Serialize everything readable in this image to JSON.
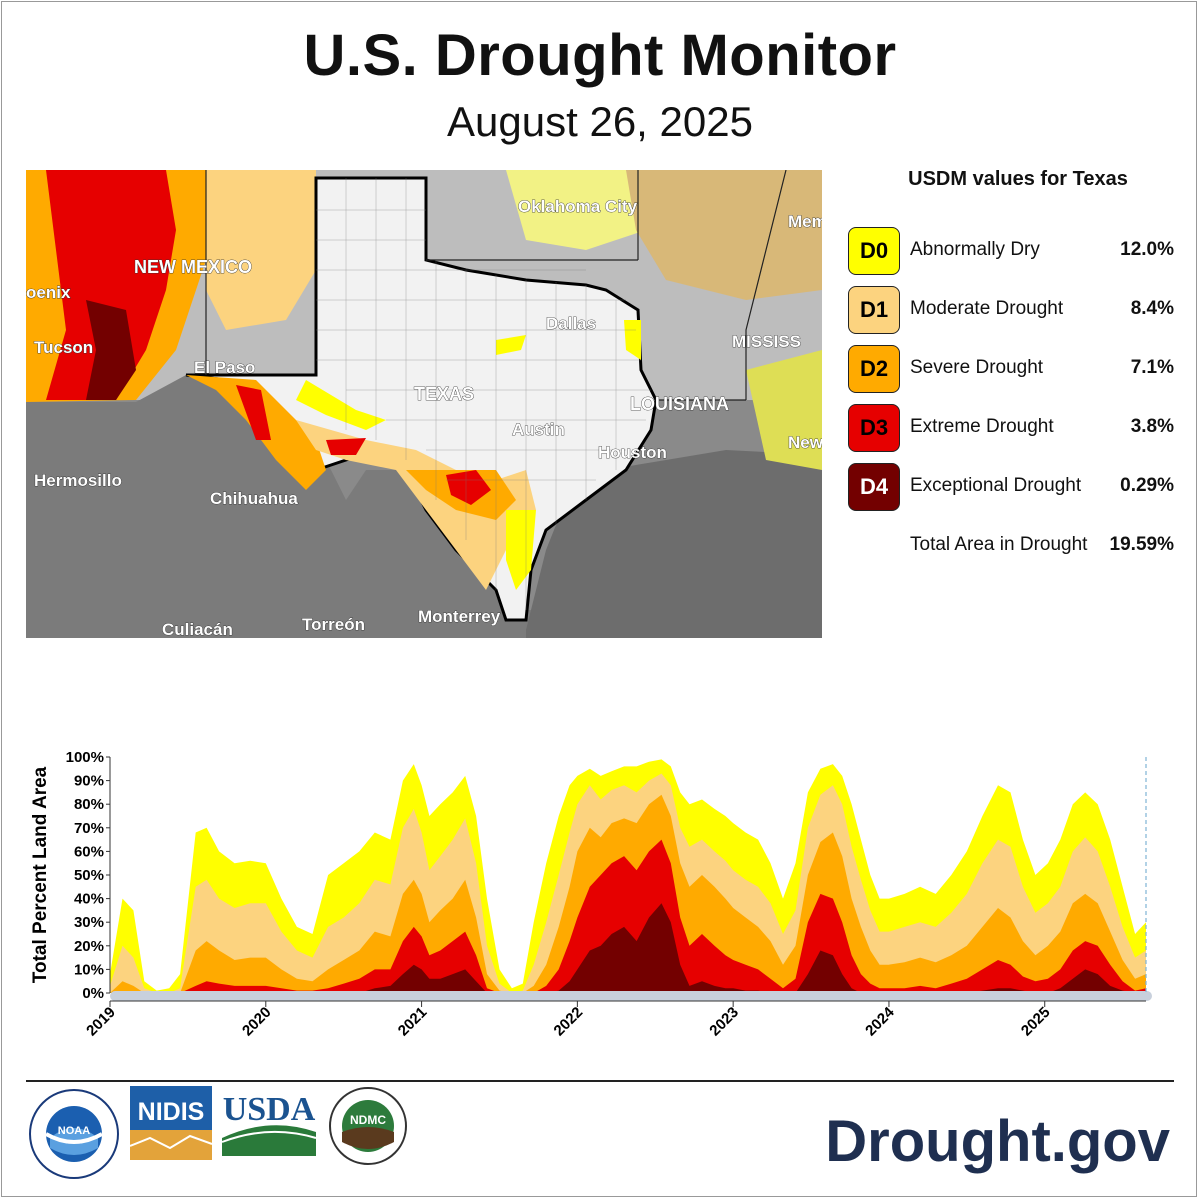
{
  "title": "U.S. Drought Monitor",
  "subtitle": "August 26, 2025",
  "map": {
    "labels": [
      "NEW MEXICO",
      "Oklahoma City",
      "Mem",
      "Dallas",
      "MISSISS",
      "TEXAS",
      "LOUISIANA",
      "Austin",
      "Houston",
      "New",
      "oenix",
      "Tucson",
      "El Paso",
      "Hermosillo",
      "Chihuahua",
      "Culiacán",
      "Torreón",
      "Monterrey"
    ]
  },
  "legend": {
    "title": "USDM values for Texas",
    "items": [
      {
        "code": "D0",
        "label": "Abnormally Dry",
        "value": "12.0%",
        "color": "#ffff00"
      },
      {
        "code": "D1",
        "label": "Moderate Drought",
        "value": "8.4%",
        "color": "#fcd37f"
      },
      {
        "code": "D2",
        "label": "Severe Drought",
        "value": "7.1%",
        "color": "#ffaa00"
      },
      {
        "code": "D3",
        "label": "Extreme Drought",
        "value": "3.8%",
        "color": "#e60000"
      },
      {
        "code": "D4",
        "label": "Exceptional Drought",
        "value": "0.29%",
        "color": "#730000"
      }
    ],
    "total_label": "Total Area in Drought",
    "total_value": "19.59%"
  },
  "chart_data": {
    "type": "area",
    "ylabel": "Total Percent Land Area",
    "ylim": [
      0,
      100
    ],
    "yticks": [
      "0%",
      "10%",
      "20%",
      "30%",
      "40%",
      "50%",
      "60%",
      "70%",
      "80%",
      "90%",
      "100%"
    ],
    "xlim": [
      2019.0,
      2025.65
    ],
    "xticks": [
      "2019",
      "2020",
      "2021",
      "2022",
      "2023",
      "2024",
      "2025"
    ],
    "colors": [
      "#ffff00",
      "#fcd37f",
      "#ffaa00",
      "#e60000",
      "#730000"
    ],
    "x": [
      2019.0,
      2019.08,
      2019.15,
      2019.22,
      2019.3,
      2019.38,
      2019.45,
      2019.55,
      2019.62,
      2019.7,
      2019.8,
      2019.9,
      2020.0,
      2020.1,
      2020.2,
      2020.3,
      2020.4,
      2020.5,
      2020.6,
      2020.7,
      2020.8,
      2020.88,
      2020.95,
      2021.0,
      2021.05,
      2021.12,
      2021.2,
      2021.28,
      2021.35,
      2021.42,
      2021.5,
      2021.58,
      2021.65,
      2021.72,
      2021.8,
      2021.88,
      2021.95,
      2022.0,
      2022.08,
      2022.15,
      2022.22,
      2022.3,
      2022.38,
      2022.46,
      2022.54,
      2022.6,
      2022.66,
      2022.72,
      2022.8,
      2022.88,
      2022.95,
      2023.0,
      2023.08,
      2023.16,
      2023.24,
      2023.32,
      2023.4,
      2023.48,
      2023.56,
      2023.64,
      2023.7,
      2023.76,
      2023.82,
      2023.88,
      2023.94,
      2024.0,
      2024.1,
      2024.2,
      2024.3,
      2024.4,
      2024.5,
      2024.6,
      2024.7,
      2024.78,
      2024.86,
      2024.94,
      2025.02,
      2025.1,
      2025.18,
      2025.26,
      2025.34,
      2025.42,
      2025.5,
      2025.58,
      2025.65
    ],
    "series": [
      {
        "name": "D0",
        "values": [
          8,
          40,
          35,
          5,
          1,
          2,
          8,
          68,
          70,
          60,
          55,
          56,
          55,
          40,
          28,
          25,
          50,
          55,
          60,
          68,
          65,
          90,
          97,
          88,
          75,
          80,
          85,
          92,
          75,
          40,
          10,
          2,
          4,
          30,
          55,
          75,
          88,
          92,
          95,
          92,
          94,
          96,
          96,
          98,
          99,
          96,
          85,
          80,
          82,
          78,
          75,
          72,
          68,
          65,
          55,
          40,
          55,
          85,
          95,
          97,
          92,
          80,
          65,
          50,
          40,
          40,
          42,
          45,
          42,
          50,
          60,
          75,
          88,
          85,
          65,
          50,
          55,
          65,
          80,
          85,
          80,
          65,
          45,
          25,
          30
        ]
      },
      {
        "name": "D1",
        "values": [
          3,
          20,
          15,
          2,
          0,
          0,
          2,
          45,
          48,
          40,
          36,
          38,
          38,
          26,
          18,
          15,
          28,
          32,
          38,
          48,
          46,
          70,
          78,
          68,
          52,
          58,
          65,
          74,
          55,
          20,
          4,
          0,
          1,
          12,
          30,
          50,
          68,
          80,
          88,
          82,
          86,
          88,
          85,
          90,
          93,
          88,
          70,
          62,
          65,
          60,
          56,
          52,
          48,
          45,
          38,
          25,
          35,
          70,
          84,
          88,
          80,
          62,
          48,
          35,
          26,
          26,
          28,
          30,
          28,
          34,
          42,
          55,
          65,
          62,
          45,
          34,
          38,
          45,
          60,
          66,
          60,
          45,
          28,
          15,
          18
        ]
      },
      {
        "name": "D2",
        "values": [
          0,
          5,
          3,
          0,
          0,
          0,
          0,
          18,
          22,
          18,
          14,
          15,
          15,
          10,
          6,
          5,
          10,
          14,
          18,
          26,
          24,
          42,
          48,
          42,
          30,
          35,
          40,
          48,
          32,
          8,
          1,
          0,
          0,
          3,
          12,
          28,
          45,
          60,
          70,
          66,
          72,
          74,
          72,
          80,
          84,
          75,
          55,
          45,
          50,
          45,
          40,
          36,
          32,
          28,
          22,
          12,
          20,
          50,
          64,
          68,
          58,
          40,
          28,
          18,
          12,
          12,
          13,
          15,
          13,
          16,
          20,
          28,
          36,
          32,
          22,
          16,
          20,
          26,
          38,
          42,
          38,
          26,
          14,
          6,
          8
        ]
      },
      {
        "name": "D3",
        "values": [
          0,
          0,
          0,
          0,
          0,
          0,
          0,
          3,
          5,
          4,
          3,
          3,
          3,
          2,
          1,
          1,
          2,
          4,
          6,
          10,
          10,
          22,
          28,
          24,
          16,
          18,
          22,
          26,
          16,
          2,
          0,
          0,
          0,
          0,
          3,
          10,
          22,
          32,
          45,
          50,
          55,
          58,
          52,
          60,
          65,
          55,
          32,
          20,
          25,
          20,
          16,
          14,
          12,
          10,
          6,
          2,
          6,
          30,
          42,
          40,
          30,
          16,
          8,
          4,
          2,
          2,
          2,
          3,
          2,
          4,
          6,
          10,
          14,
          12,
          7,
          5,
          6,
          10,
          18,
          22,
          20,
          12,
          5,
          1,
          2
        ]
      },
      {
        "name": "D4",
        "values": [
          0,
          0,
          0,
          0,
          0,
          0,
          0,
          0,
          0,
          0,
          0,
          0,
          0,
          0,
          0,
          0,
          0,
          0,
          0,
          2,
          3,
          8,
          12,
          10,
          6,
          6,
          8,
          10,
          5,
          0,
          0,
          0,
          0,
          0,
          0,
          1,
          5,
          10,
          18,
          20,
          25,
          28,
          22,
          32,
          38,
          30,
          12,
          3,
          5,
          3,
          2,
          2,
          1,
          1,
          0,
          0,
          0,
          8,
          18,
          16,
          8,
          2,
          0,
          0,
          0,
          0,
          0,
          0,
          0,
          0,
          0,
          1,
          2,
          2,
          1,
          0,
          0,
          2,
          6,
          10,
          8,
          3,
          1,
          0,
          0
        ]
      }
    ]
  },
  "footer": {
    "brand": "Drought.gov",
    "logos": [
      "NOAA",
      "NIDIS",
      "USDA",
      "NDMC"
    ]
  }
}
